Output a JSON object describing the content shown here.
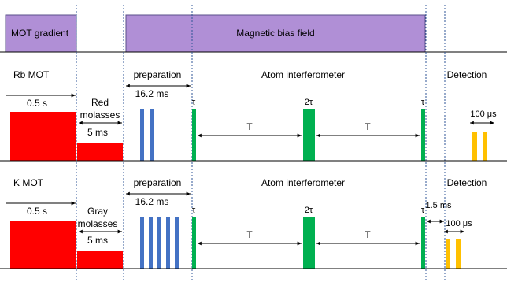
{
  "top": {
    "mot_gradient": "MOT gradient",
    "bias_field": "Magnetic bias field",
    "colors": {
      "field_fill": "#b08fd6",
      "field_stroke": "#5a4f8a"
    }
  },
  "rows": [
    {
      "id": "rb",
      "mot_label": "Rb MOT",
      "mot_duration": "0.5 s",
      "molasses_label_1": "Red",
      "molasses_label_2": "molasses",
      "molasses_duration": "5 ms",
      "prep_label": "preparation",
      "prep_duration": "16.2 ms",
      "prep_pulse_count": 2,
      "interferometer_label": "Atom interferometer",
      "tau_1": "τ",
      "tau_2": "2τ",
      "tau_3": "τ",
      "T_1": "T",
      "T_2": "T",
      "detection_label": "Detection",
      "detection_pulse_spacing": "100 μs",
      "detection_delay": ""
    },
    {
      "id": "k",
      "mot_label": "K MOT",
      "mot_duration": "0.5 s",
      "molasses_label_1": "Gray",
      "molasses_label_2": "molasses",
      "molasses_duration": "5 ms",
      "prep_label": "preparation",
      "prep_duration": "16.2 ms",
      "prep_pulse_count": 5,
      "interferometer_label": "Atom interferometer",
      "tau_1": "τ",
      "tau_2": "2τ",
      "tau_3": "τ",
      "T_1": "T",
      "T_2": "T",
      "detection_label": "Detection",
      "detection_pulse_spacing": "100 μs",
      "detection_delay": "1.5 ms"
    }
  ],
  "colors": {
    "mot": "#ff0000",
    "prep_pulse": "#4472c4",
    "interferometer_pulse": "#00b050",
    "detection_pulse": "#ffc000",
    "phase_divider": "#2f5597"
  }
}
